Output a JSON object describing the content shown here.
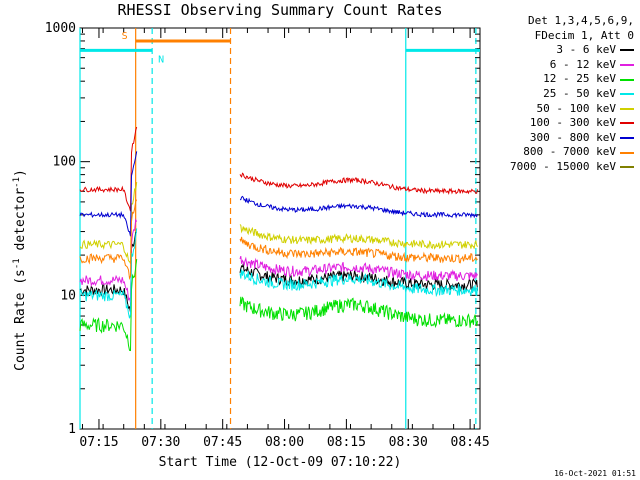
{
  "chart_data": {
    "type": "line",
    "title": "RHESSI Observing Summary Count Rates",
    "xlabel": "Start Time (12-Oct-09 07:10:22)",
    "ylabel": "Count Rate (s",
    "ylabel_sup1": "-1",
    "ylabel_mid": " detector",
    "ylabel_sup2": "-1",
    "ylabel_end": ")",
    "yscale": "log",
    "ylim": [
      1,
      1000
    ],
    "ytick_labels": [
      "1",
      "10",
      "100",
      "1000"
    ],
    "ytick_values": [
      1,
      10,
      100,
      1000
    ],
    "xlim_minutes": [
      0,
      97
    ],
    "xtick_labels": [
      "07:15",
      "07:30",
      "07:45",
      "08:00",
      "08:15",
      "08:30",
      "08:45"
    ],
    "xtick_values_minutes": [
      4.6,
      19.6,
      34.6,
      49.6,
      64.6,
      79.6,
      94.6
    ],
    "legend_header": [
      "Det 1,3,4,5,6,9,",
      "FDecim 1, Att 0"
    ],
    "series": [
      {
        "name": "3 - 6 keV",
        "color": "#000000",
        "level_pre": 11,
        "level_post": 12,
        "bump": 1.15,
        "noise": 0.1
      },
      {
        "name": "6 - 12 keV",
        "color": "#e020e0",
        "level_pre": 13,
        "level_post": 14,
        "bump": 1.15,
        "noise": 0.09
      },
      {
        "name": "12 - 25 keV",
        "color": "#00e000",
        "level_pre": 6,
        "level_post": 6.5,
        "bump": 1.3,
        "noise": 0.12
      },
      {
        "name": "25 - 50 keV",
        "color": "#00e8e8",
        "level_pre": 10,
        "level_post": 11,
        "bump": 1.2,
        "noise": 0.1
      },
      {
        "name": "50 - 100 keV",
        "color": "#d0d000",
        "level_pre": 24,
        "level_post": 24,
        "bump": 1.1,
        "noise": 0.07
      },
      {
        "name": "100 - 300 keV",
        "color": "#e00000",
        "level_pre": 62,
        "level_post": 60,
        "bump": 1.2,
        "noise": 0.04
      },
      {
        "name": "300 - 800 keV",
        "color": "#0000d0",
        "level_pre": 40,
        "level_post": 40,
        "bump": 1.15,
        "noise": 0.04
      },
      {
        "name": "800 - 7000 keV",
        "color": "#ff8000",
        "level_pre": 19,
        "level_post": 19,
        "bump": 1.1,
        "noise": 0.08
      },
      {
        "name": "7000 - 15000 keV",
        "color": "#808000",
        "level_pre": 0,
        "level_post": 0,
        "bump": 1,
        "noise": 0
      }
    ],
    "bars": [
      {
        "label": "S",
        "color": "#ff8000",
        "start": 13.5,
        "end": 36.5,
        "value": 800
      },
      {
        "label": "N",
        "color": "#00e8e8",
        "start": 0,
        "end": 17.5,
        "value": 680
      },
      {
        "label": "",
        "color": "#00e8e8",
        "start": 79.0,
        "end": 97,
        "value": 680
      }
    ],
    "vlines": [
      {
        "x": 0,
        "color": "#00e8e8",
        "dash": false
      },
      {
        "x": 13.5,
        "color": "#ff8000",
        "dash": false
      },
      {
        "x": 17.5,
        "color": "#00e8e8",
        "dash": true
      },
      {
        "x": 36.5,
        "color": "#ff8000",
        "dash": true
      },
      {
        "x": 79.0,
        "color": "#00e8e8",
        "dash": false
      },
      {
        "x": 96.0,
        "color": "#00e8e8",
        "dash": true
      }
    ],
    "gap": [
      13.8,
      38.8
    ],
    "grid": false
  },
  "timestamp": "16-Oct-2021 01:51"
}
